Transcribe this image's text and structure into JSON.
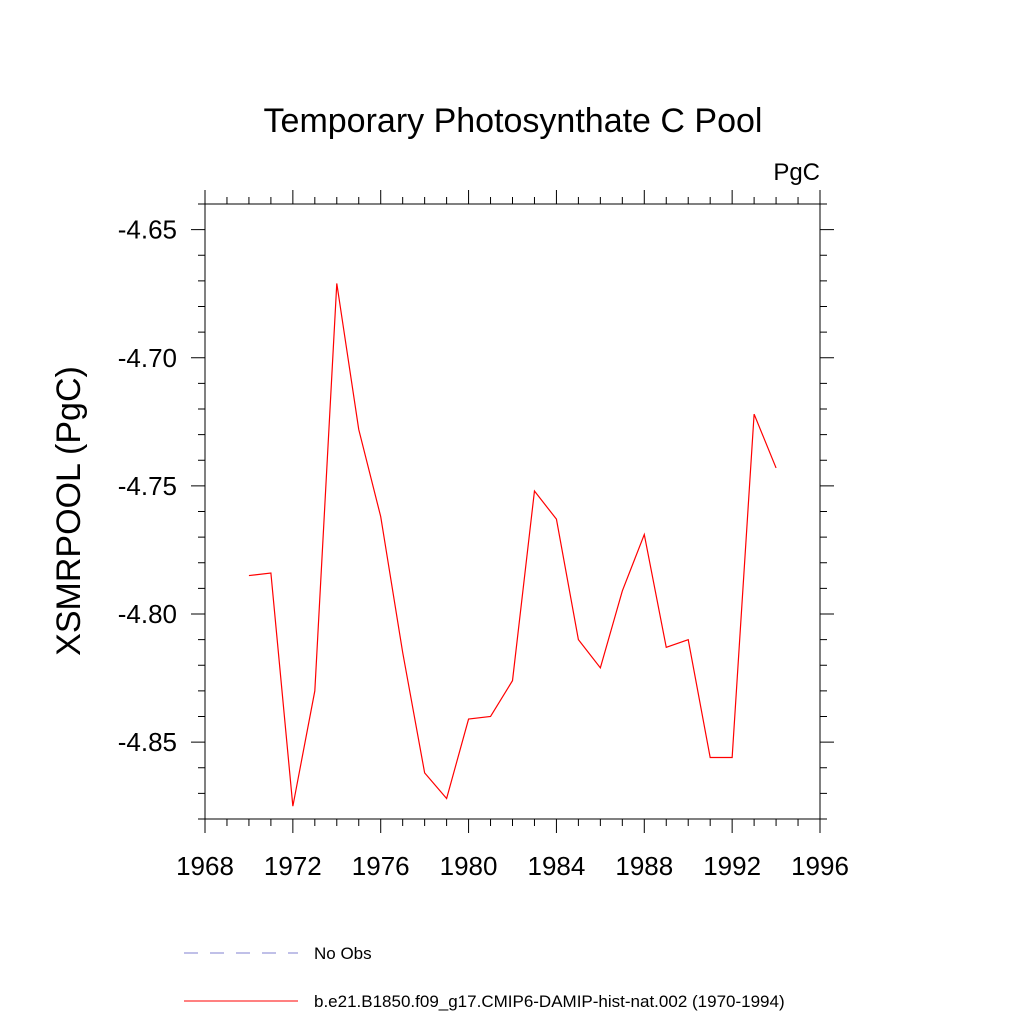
{
  "chart_data": {
    "type": "line",
    "title": "Temporary Photosynthate C Pool",
    "units": "PgC",
    "xlabel": "",
    "ylabel": "XSMRPOOL  (PgC)",
    "xlim": [
      1968,
      1996
    ],
    "ylim": [
      -4.88,
      -4.64
    ],
    "x_ticks": [
      1968,
      1972,
      1976,
      1980,
      1984,
      1988,
      1992,
      1996
    ],
    "x_tick_labels": [
      "1968",
      "1972",
      "1976",
      "1980",
      "1984",
      "1988",
      "1992",
      "1996"
    ],
    "y_ticks": [
      -4.65,
      -4.7,
      -4.75,
      -4.8,
      -4.85
    ],
    "y_tick_labels": [
      "-4.65",
      "-4.70",
      "-4.75",
      "-4.80",
      "-4.85"
    ],
    "grid": false,
    "legend_position": "bottom",
    "series": [
      {
        "name": "No Obs",
        "color": "#8080d0",
        "dash": "dashed",
        "x": [],
        "values": []
      },
      {
        "name": "b.e21.B1850.f09_g17.CMIP6-DAMIP-hist-nat.002 (1970-1994)",
        "color": "#ff0000",
        "dash": "solid",
        "x": [
          1970,
          1971,
          1972,
          1973,
          1974,
          1975,
          1976,
          1977,
          1978,
          1979,
          1980,
          1981,
          1982,
          1983,
          1984,
          1985,
          1986,
          1987,
          1988,
          1989,
          1990,
          1991,
          1992,
          1993,
          1994
        ],
        "values": [
          -4.785,
          -4.784,
          -4.875,
          -4.83,
          -4.671,
          -4.728,
          -4.762,
          -4.815,
          -4.862,
          -4.872,
          -4.841,
          -4.84,
          -4.826,
          -4.752,
          -4.763,
          -4.81,
          -4.821,
          -4.791,
          -4.769,
          -4.813,
          -4.81,
          -4.856,
          -4.856,
          -4.722,
          -4.743
        ]
      }
    ]
  }
}
